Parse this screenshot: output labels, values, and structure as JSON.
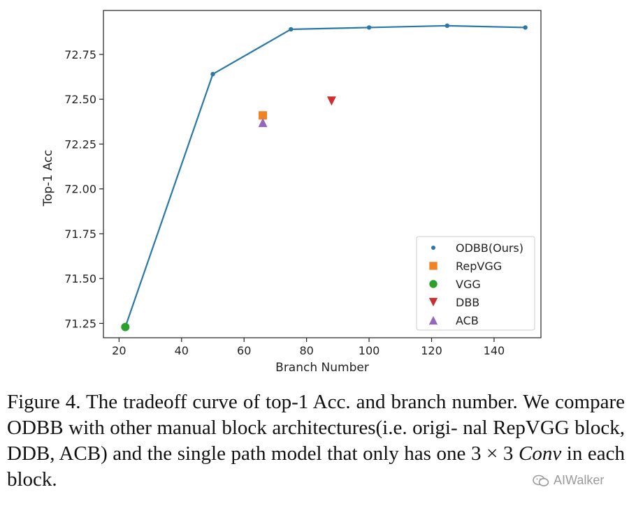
{
  "chart_data": {
    "type": "line",
    "xlabel": "Branch Number",
    "ylabel": "Top-1 Acc",
    "xlim": [
      15,
      155
    ],
    "ylim": [
      71.17,
      72.995
    ],
    "xticks": [
      20,
      40,
      60,
      80,
      100,
      120,
      140
    ],
    "yticks": [
      71.25,
      71.5,
      71.75,
      72.0,
      72.25,
      72.5,
      72.75
    ],
    "ytick_labels": [
      "71.25",
      "71.50",
      "71.75",
      "72.00",
      "72.25",
      "72.50",
      "72.75"
    ],
    "grid": false,
    "legend_position": "lower right",
    "series": [
      {
        "name": "ODBB(Ours)",
        "marker": "dot",
        "color": "#2878a8",
        "line": true,
        "points": [
          [
            22,
            71.23
          ],
          [
            50,
            72.64
          ],
          [
            75,
            72.89
          ],
          [
            100,
            72.9
          ],
          [
            125,
            72.91
          ],
          [
            150,
            72.9
          ]
        ]
      },
      {
        "name": "RepVGG",
        "marker": "square",
        "color": "#f28325",
        "line": false,
        "points": [
          [
            66,
            72.41
          ]
        ]
      },
      {
        "name": "VGG",
        "marker": "circle",
        "color": "#2ca02c",
        "line": false,
        "points": [
          [
            22,
            71.23
          ]
        ]
      },
      {
        "name": "DBB",
        "marker": "triangle-down",
        "color": "#cc2f2f",
        "line": false,
        "points": [
          [
            88,
            72.49
          ]
        ]
      },
      {
        "name": "ACB",
        "marker": "triangle-up",
        "color": "#9467bd",
        "line": false,
        "points": [
          [
            66,
            72.37
          ]
        ]
      }
    ]
  },
  "caption": {
    "line1": "Figure 4. The tradeoff curve of top-1 Acc. and branch number. We",
    "line2": "compare ODBB with other manual block architectures(i.e. origi-",
    "line3": "nal RepVGG block, DDB, ACB) and the single path model that",
    "line4_prefix": "only has one ",
    "line4_math_a": "3 × 3",
    "line4_math_b": "Conv",
    "line4_suffix": " in each block."
  },
  "watermark": {
    "text": "AIWalker",
    "icon": "wechat-icon"
  }
}
